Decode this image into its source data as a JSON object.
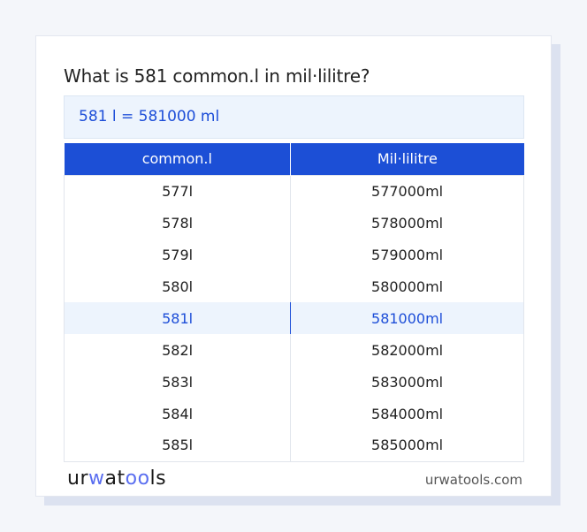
{
  "title": "What is 581 common.l in mil·lilitre?",
  "result": "581 l = 581000 ml",
  "table": {
    "headers": [
      "common.l",
      "Mil·lilitre"
    ],
    "rows": [
      [
        "577l",
        "577000ml"
      ],
      [
        "578l",
        "578000ml"
      ],
      [
        "579l",
        "579000ml"
      ],
      [
        "580l",
        "580000ml"
      ],
      [
        "581l",
        "581000ml"
      ],
      [
        "582l",
        "582000ml"
      ],
      [
        "583l",
        "583000ml"
      ],
      [
        "584l",
        "584000ml"
      ],
      [
        "585l",
        "585000ml"
      ]
    ],
    "highlighted_row": 4
  },
  "footer": {
    "logo": "urwatools",
    "site": "urwatools.com"
  },
  "colors": {
    "accent": "#1c4fd6",
    "highlight_bg": "#edf4fd"
  }
}
